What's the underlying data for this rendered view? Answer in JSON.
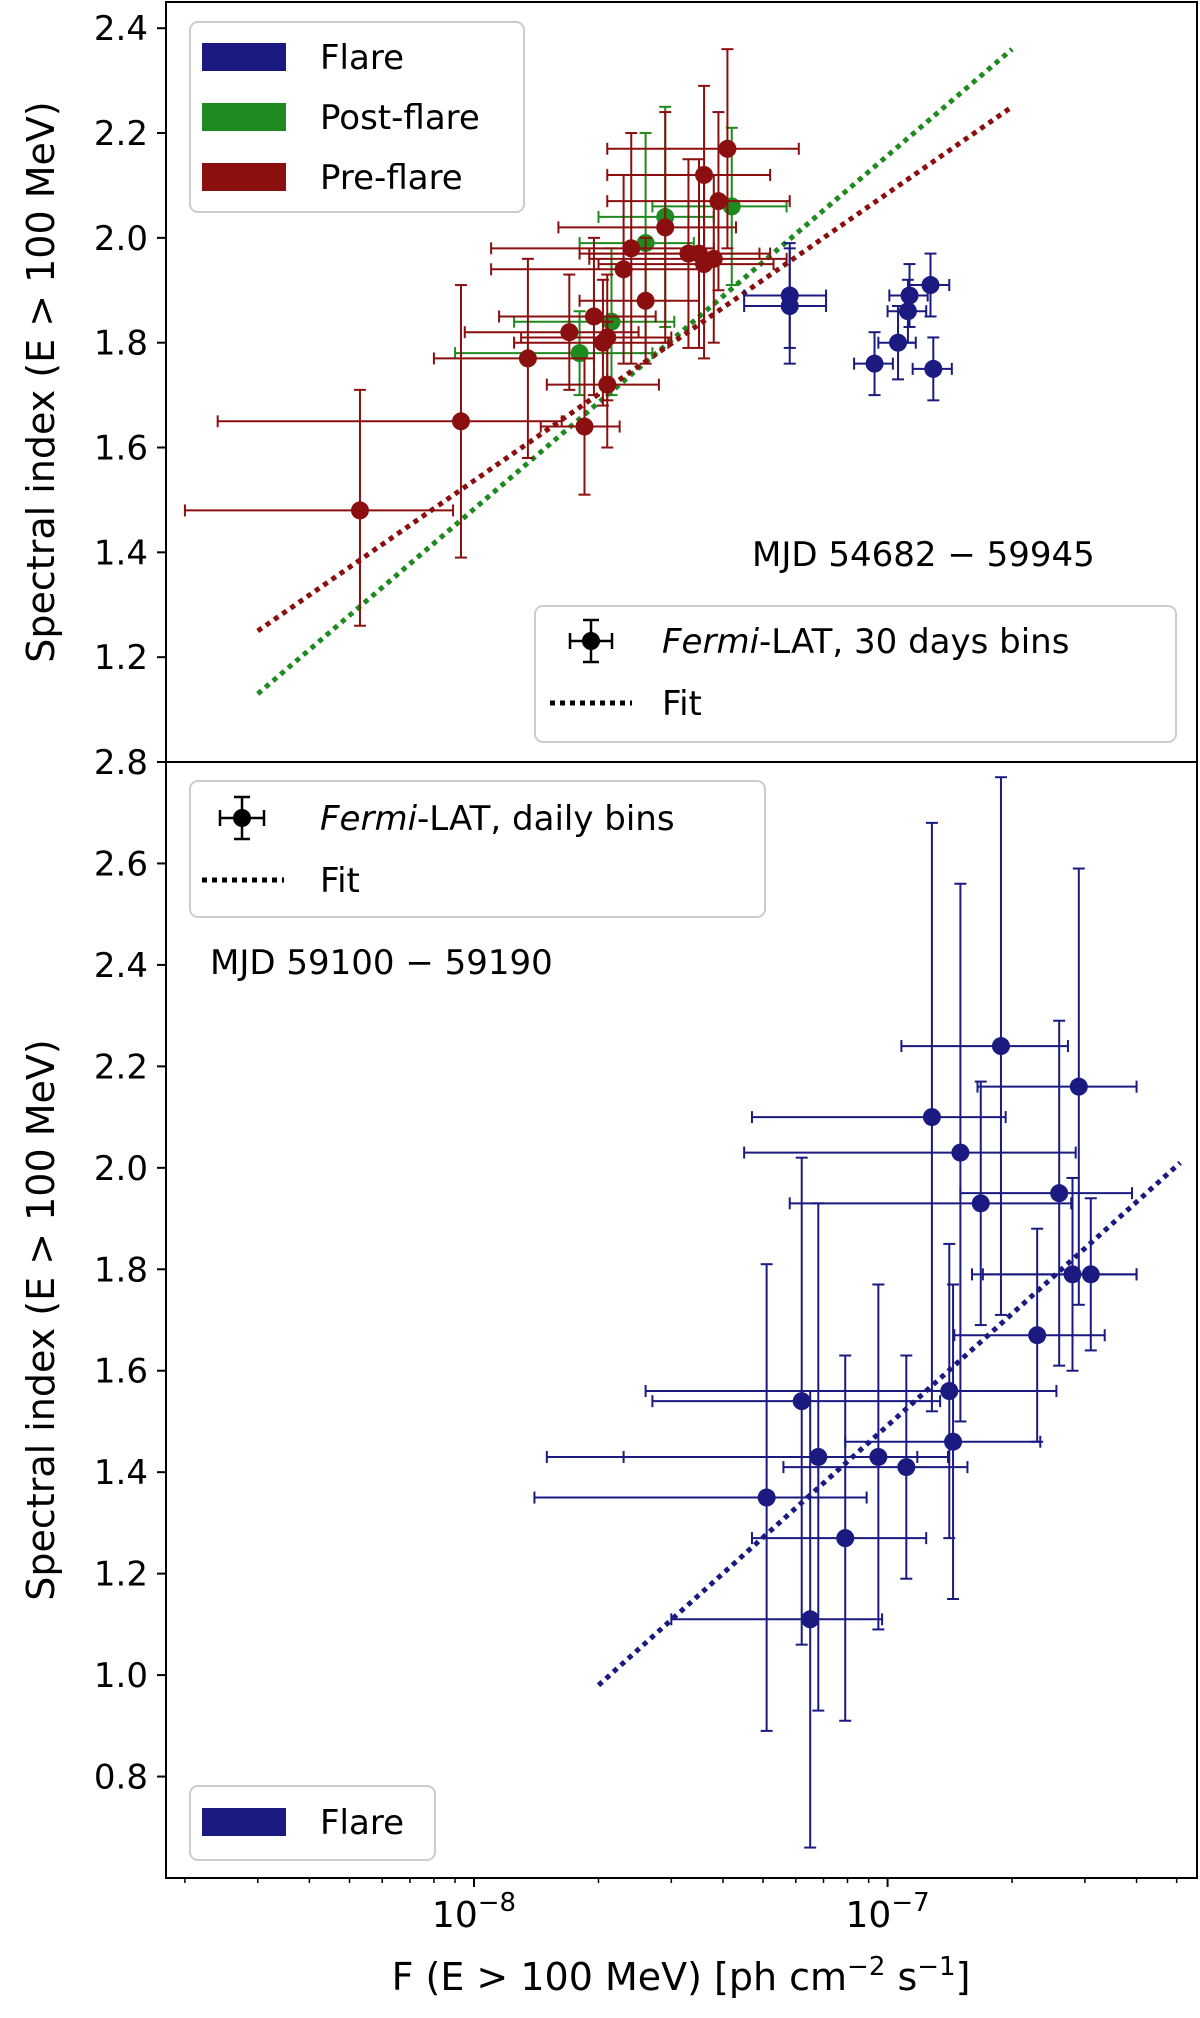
{
  "figure": {
    "xlabel": "F (E > 100 MeV) [ph cm",
    "xlabel_exp1": "−2",
    "xlabel_mid": " s",
    "xlabel_exp2": "−1",
    "xlabel_end": "]",
    "xtick_base": "10",
    "xtick_exponents": [
      "−8",
      "−7"
    ],
    "top_ylabel": "Spectral index (E > 100 MeV)",
    "bottom_ylabel": "Spectral index (E > 100 MeV)",
    "top_ytick_labels": [
      "1.2",
      "1.4",
      "1.6",
      "1.8",
      "2.0",
      "2.2",
      "2.4"
    ],
    "bottom_ytick_labels": [
      "0.8",
      "1.0",
      "1.2",
      "1.4",
      "1.6",
      "1.8",
      "2.0",
      "2.2",
      "2.4",
      "2.6",
      "2.8"
    ],
    "top_annotation": "MJD 54682 − 59945",
    "bottom_annotation": "MJD 59100 − 59190",
    "colors": {
      "flare": "#1a1a80",
      "post_flare": "#1f8a1f",
      "pre_flare": "#8b0f0f"
    }
  },
  "legends": {
    "top_patches": [
      "Flare",
      "Post-flare",
      "Pre-flare"
    ],
    "top_markers": {
      "fermi_italic": "Fermi",
      "bins_label": "-LAT, 30 days bins",
      "fit_label": "Fit"
    },
    "bottom_markers": {
      "fermi_italic": "Fermi",
      "bins_label": "-LAT, daily bins",
      "fit_label": "Fit"
    },
    "bottom_patches": [
      "Flare"
    ]
  },
  "chart_data": [
    {
      "type": "scatter",
      "panel": "top",
      "xscale": "log",
      "xlim": [
        1.8e-09,
        5.6e-07
      ],
      "ylim": [
        1.0,
        2.45
      ],
      "grid": false,
      "legend_placement": [
        "upper left",
        "lower right"
      ],
      "series": [
        {
          "name": "Flare",
          "color": "#1a1a80",
          "points": [
            {
              "x": 5.8e-08,
              "y": 1.89,
              "xerr": [
                1.3e-08,
                1.3e-08
              ],
              "yerr": [
                0.1,
                0.1
              ]
            },
            {
              "x": 5.8e-08,
              "y": 1.87,
              "xerr": [
                1.3e-08,
                1.3e-08
              ],
              "yerr": [
                0.11,
                0.11
              ]
            },
            {
              "x": 1.13e-07,
              "y": 1.89,
              "xerr": [
                1.2e-08,
                1.2e-08
              ],
              "yerr": [
                0.06,
                0.06
              ]
            },
            {
              "x": 1.12e-07,
              "y": 1.86,
              "xerr": [
                1.2e-08,
                1.2e-08
              ],
              "yerr": [
                0.06,
                0.06
              ]
            },
            {
              "x": 1.27e-07,
              "y": 1.91,
              "xerr": [
                1.4e-08,
                1.4e-08
              ],
              "yerr": [
                0.06,
                0.06
              ]
            },
            {
              "x": 1.06e-07,
              "y": 1.8,
              "xerr": [
                1.1e-08,
                1.1e-08
              ],
              "yerr": [
                0.07,
                0.07
              ]
            },
            {
              "x": 9.3e-08,
              "y": 1.76,
              "xerr": [
                1e-08,
                1e-08
              ],
              "yerr": [
                0.06,
                0.06
              ]
            },
            {
              "x": 1.29e-07,
              "y": 1.75,
              "xerr": [
                1.4e-08,
                1.4e-08
              ],
              "yerr": [
                0.06,
                0.06
              ]
            }
          ]
        },
        {
          "name": "Post-flare",
          "color": "#1f8a1f",
          "points": [
            {
              "x": 1.8e-08,
              "y": 1.78,
              "xerr": [
                9e-09,
                9e-09
              ],
              "yerr": [
                0.08,
                0.08
              ]
            },
            {
              "x": 2.15e-08,
              "y": 1.84,
              "xerr": [
                9e-09,
                9e-09
              ],
              "yerr": [
                0.14,
                0.14
              ]
            },
            {
              "x": 2.6e-08,
              "y": 1.99,
              "xerr": [
                8e-09,
                8e-09
              ],
              "yerr": [
                0.21,
                0.21
              ]
            },
            {
              "x": 2.9e-08,
              "y": 2.04,
              "xerr": [
                9e-09,
                9e-09
              ],
              "yerr": [
                0.21,
                0.21
              ]
            },
            {
              "x": 4.2e-08,
              "y": 2.06,
              "xerr": [
                1.5e-08,
                1.5e-08
              ],
              "yerr": [
                0.15,
                0.15
              ]
            }
          ]
        },
        {
          "name": "Pre-flare",
          "color": "#8b0f0f",
          "points": [
            {
              "x": 5.3e-09,
              "y": 1.48,
              "xerr": [
                3.3e-09,
                3.6e-09
              ],
              "yerr": [
                0.22,
                0.23
              ]
            },
            {
              "x": 9.3e-09,
              "y": 1.65,
              "xerr": [
                6.9e-09,
                7e-09
              ],
              "yerr": [
                0.26,
                0.26
              ]
            },
            {
              "x": 1.35e-08,
              "y": 1.77,
              "xerr": [
                5.5e-09,
                6e-09
              ],
              "yerr": [
                0.19,
                0.19
              ]
            },
            {
              "x": 1.7e-08,
              "y": 1.82,
              "xerr": [
                7.5e-09,
                8e-09
              ],
              "yerr": [
                0.11,
                0.11
              ]
            },
            {
              "x": 1.85e-08,
              "y": 1.64,
              "xerr": [
                4e-09,
                4e-09
              ],
              "yerr": [
                0.13,
                0.13
              ]
            },
            {
              "x": 1.95e-08,
              "y": 1.85,
              "xerr": [
                8e-09,
                8e-09
              ],
              "yerr": [
                0.15,
                0.15
              ]
            },
            {
              "x": 2.05e-08,
              "y": 1.8,
              "xerr": [
                8e-09,
                9e-09
              ],
              "yerr": [
                0.12,
                0.12
              ]
            },
            {
              "x": 2.1e-08,
              "y": 1.81,
              "xerr": [
                8e-09,
                9e-09
              ],
              "yerr": [
                0.12,
                0.12
              ]
            },
            {
              "x": 2.1e-08,
              "y": 1.72,
              "xerr": [
                6e-09,
                7e-09
              ],
              "yerr": [
                0.12,
                0.12
              ]
            },
            {
              "x": 2.3e-08,
              "y": 1.94,
              "xerr": [
                1.2e-08,
                1.3e-08
              ],
              "yerr": [
                0.18,
                0.18
              ]
            },
            {
              "x": 2.4e-08,
              "y": 1.98,
              "xerr": [
                1.3e-08,
                1.4e-08
              ],
              "yerr": [
                0.22,
                0.22
              ]
            },
            {
              "x": 2.6e-08,
              "y": 1.88,
              "xerr": [
                8e-09,
                9e-09
              ],
              "yerr": [
                0.12,
                0.12
              ]
            },
            {
              "x": 2.9e-08,
              "y": 2.02,
              "xerr": [
                1.3e-08,
                1.4e-08
              ],
              "yerr": [
                0.22,
                0.22
              ]
            },
            {
              "x": 3.3e-08,
              "y": 1.97,
              "xerr": [
                1.5e-08,
                1.6e-08
              ],
              "yerr": [
                0.18,
                0.18
              ]
            },
            {
              "x": 3.5e-08,
              "y": 1.97,
              "xerr": [
                1.6e-08,
                1.7e-08
              ],
              "yerr": [
                0.18,
                0.18
              ]
            },
            {
              "x": 3.6e-08,
              "y": 1.95,
              "xerr": [
                1.6e-08,
                1.7e-08
              ],
              "yerr": [
                0.18,
                0.18
              ]
            },
            {
              "x": 3.6e-08,
              "y": 2.12,
              "xerr": [
                1.5e-08,
                1.6e-08
              ],
              "yerr": [
                0.17,
                0.17
              ]
            },
            {
              "x": 3.9e-08,
              "y": 2.07,
              "xerr": [
                1.8e-08,
                1.9e-08
              ],
              "yerr": [
                0.17,
                0.17
              ]
            },
            {
              "x": 4.1e-08,
              "y": 2.17,
              "xerr": [
                2e-08,
                2e-08
              ],
              "yerr": [
                0.19,
                0.19
              ]
            },
            {
              "x": 3.8e-08,
              "y": 1.96,
              "xerr": [
                1.9e-08,
                1.9e-08
              ],
              "yerr": [
                0.16,
                0.16
              ]
            }
          ]
        }
      ],
      "fits": [
        {
          "name": "Post-flare",
          "color": "#1f8a1f",
          "x": [
            3e-09,
            2e-07
          ],
          "y": [
            1.13,
            2.36
          ]
        },
        {
          "name": "Pre-flare",
          "color": "#8b0f0f",
          "x": [
            3e-09,
            2e-07
          ],
          "y": [
            1.25,
            2.25
          ]
        }
      ]
    },
    {
      "type": "scatter",
      "panel": "bottom",
      "xscale": "log",
      "xlim": [
        1.8e-09,
        5.6e-07
      ],
      "ylim": [
        0.6,
        2.8
      ],
      "grid": false,
      "legend_placement": [
        "upper left",
        "lower left"
      ],
      "series": [
        {
          "name": "Flare",
          "color": "#1a1a80",
          "points": [
            {
              "x": 5.1e-08,
              "y": 1.35,
              "xerr": [
                3.7e-08,
                3.8e-08
              ],
              "yerr": [
                0.46,
                0.46
              ]
            },
            {
              "x": 6.2e-08,
              "y": 1.54,
              "xerr": [
                3.5e-08,
                7.2e-08
              ],
              "yerr": [
                0.48,
                0.48
              ]
            },
            {
              "x": 6.5e-08,
              "y": 1.11,
              "xerr": [
                3.5e-08,
                3.2e-08
              ],
              "yerr": [
                0.45,
                0.45
              ]
            },
            {
              "x": 6.8e-08,
              "y": 1.43,
              "xerr": [
                4.5e-08,
                5e-08
              ],
              "yerr": [
                0.5,
                0.5
              ]
            },
            {
              "x": 7.9e-08,
              "y": 1.27,
              "xerr": [
                3.2e-08,
                4.5e-08
              ],
              "yerr": [
                0.36,
                0.36
              ]
            },
            {
              "x": 9.5e-08,
              "y": 1.43,
              "xerr": [
                8e-08,
                4.5e-08
              ],
              "yerr": [
                0.34,
                0.34
              ]
            },
            {
              "x": 1.11e-07,
              "y": 1.41,
              "xerr": [
                5.5e-08,
                4.5e-08
              ],
              "yerr": [
                0.22,
                0.22
              ]
            },
            {
              "x": 1.28e-07,
              "y": 2.1,
              "xerr": [
                8.1e-08,
                6.5e-08
              ],
              "yerr": [
                0.58,
                0.58
              ]
            },
            {
              "x": 1.41e-07,
              "y": 1.56,
              "xerr": [
                1.15e-07,
                1.15e-07
              ],
              "yerr": [
                0.29,
                0.29
              ]
            },
            {
              "x": 1.44e-07,
              "y": 1.46,
              "xerr": [
                6.5e-08,
                9e-08
              ],
              "yerr": [
                0.31,
                0.31
              ]
            },
            {
              "x": 1.5e-07,
              "y": 2.03,
              "xerr": [
                1.05e-07,
                1.35e-07
              ],
              "yerr": [
                0.53,
                0.53
              ]
            },
            {
              "x": 1.68e-07,
              "y": 1.93,
              "xerr": [
                1.1e-07,
                1.1e-07
              ],
              "yerr": [
                0.24,
                0.24
              ]
            },
            {
              "x": 1.88e-07,
              "y": 2.24,
              "xerr": [
                8e-08,
                8.5e-08
              ],
              "yerr": [
                0.53,
                0.53
              ]
            },
            {
              "x": 2.3e-07,
              "y": 1.67,
              "xerr": [
                8.5e-08,
                1.05e-07
              ],
              "yerr": [
                0.21,
                0.21
              ]
            },
            {
              "x": 2.6e-07,
              "y": 1.95,
              "xerr": [
                1.1e-07,
                1.3e-07
              ],
              "yerr": [
                0.34,
                0.34
              ]
            },
            {
              "x": 2.8e-07,
              "y": 1.79,
              "xerr": [
                1.2e-07,
                1.2e-07
              ],
              "yerr": [
                0.19,
                0.19
              ]
            },
            {
              "x": 2.9e-07,
              "y": 2.16,
              "xerr": [
                1.25e-07,
                1.1e-07
              ],
              "yerr": [
                0.43,
                0.43
              ]
            },
            {
              "x": 3.1e-07,
              "y": 1.79,
              "xerr": [
                1.4e-07,
                9e-08
              ],
              "yerr": [
                0.15,
                0.15
              ]
            }
          ]
        }
      ],
      "fits": [
        {
          "name": "Flare",
          "color": "#1a1a80",
          "x": [
            2e-08,
            5.1e-07
          ],
          "y": [
            0.98,
            2.01
          ]
        }
      ]
    }
  ]
}
